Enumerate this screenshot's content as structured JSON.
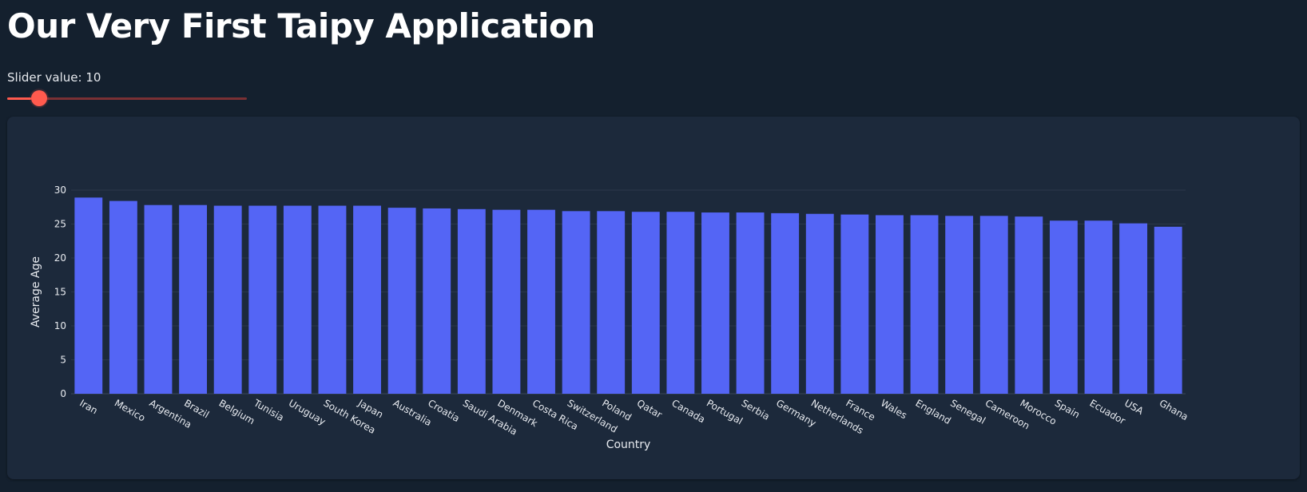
{
  "app": {
    "title": "Our Very First Taipy Application"
  },
  "slider": {
    "label": "Slider value: 10",
    "value": 10,
    "min": 0,
    "max": 100
  },
  "colors": {
    "background": "#14202e",
    "card": "#1c293b",
    "bar": "#5465f5",
    "accent": "#ff5a4e",
    "rail": "#7a3034"
  },
  "chart_data": {
    "type": "bar",
    "categories": [
      "Iran",
      "Mexico",
      "Argentina",
      "Brazil",
      "Belgium",
      "Tunisia",
      "Uruguay",
      "South Korea",
      "Japan",
      "Australia",
      "Croatia",
      "Saudi Arabia",
      "Denmark",
      "Costa Rica",
      "Switzerland",
      "Poland",
      "Qatar",
      "Canada",
      "Portugal",
      "Serbia",
      "Germany",
      "Netherlands",
      "France",
      "Wales",
      "England",
      "Senegal",
      "Cameroon",
      "Morocco",
      "Spain",
      "Ecuador",
      "USA",
      "Ghana"
    ],
    "values": [
      28.9,
      28.4,
      27.8,
      27.8,
      27.7,
      27.7,
      27.7,
      27.7,
      27.7,
      27.4,
      27.3,
      27.2,
      27.1,
      27.1,
      26.9,
      26.9,
      26.8,
      26.8,
      26.7,
      26.7,
      26.6,
      26.5,
      26.4,
      26.3,
      26.3,
      26.2,
      26.2,
      26.1,
      25.5,
      25.5,
      25.1,
      24.6
    ],
    "xlabel": "Country",
    "ylabel": "Average Age",
    "ylim": [
      0,
      30
    ],
    "yticks": [
      0,
      5,
      10,
      15,
      20,
      25,
      30
    ],
    "grid": true
  }
}
